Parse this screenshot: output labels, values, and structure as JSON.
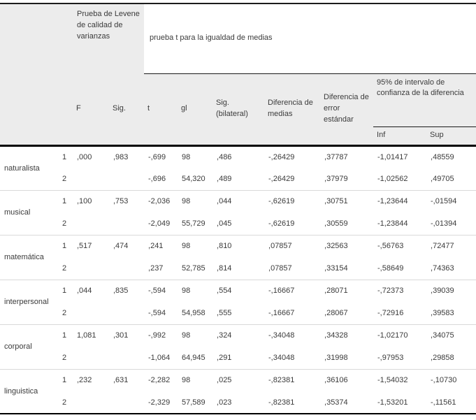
{
  "table": {
    "header": {
      "levene_title": "Prueba de Levene de calidad de varianzas",
      "ttest_title": "prueba t para la igualdad de medias",
      "ci_title": "95% de intervalo de confianza de la diferencia",
      "col_f": "F",
      "col_sig": "Sig.",
      "col_t": "t",
      "col_gl": "gl",
      "col_sig_bilateral": "Sig. (bilateral)",
      "col_dif_medias": "Diferencia de medias",
      "col_dif_error": "Diferencia de error estándar",
      "col_inf": "Inf",
      "col_sup": "Sup"
    },
    "rows": [
      {
        "label": "naturalista",
        "lines": [
          {
            "num": "1",
            "f": ",000",
            "sig": ",983",
            "t": "-,699",
            "gl": "98",
            "sig_bilateral": ",486",
            "dif_medias": "-,26429",
            "dif_error": ",37787",
            "inf": "-1,01417",
            "sup": ",48559"
          },
          {
            "num": "2",
            "f": "",
            "sig": "",
            "t": "-,696",
            "gl": "54,320",
            "sig_bilateral": ",489",
            "dif_medias": "-,26429",
            "dif_error": ",37979",
            "inf": "-1,02562",
            "sup": ",49705"
          }
        ]
      },
      {
        "label": "musical",
        "lines": [
          {
            "num": "1",
            "f": ",100",
            "sig": ",753",
            "t": "-2,036",
            "gl": "98",
            "sig_bilateral": ",044",
            "dif_medias": "-,62619",
            "dif_error": ",30751",
            "inf": "-1,23644",
            "sup": "-,01594"
          },
          {
            "num": "2",
            "f": "",
            "sig": "",
            "t": "-2,049",
            "gl": "55,729",
            "sig_bilateral": ",045",
            "dif_medias": "-,62619",
            "dif_error": ",30559",
            "inf": "-1,23844",
            "sup": "-,01394"
          }
        ]
      },
      {
        "label": "matemática",
        "lines": [
          {
            "num": "1",
            "f": ",517",
            "sig": ",474",
            "t": ",241",
            "gl": "98",
            "sig_bilateral": ",810",
            "dif_medias": ",07857",
            "dif_error": ",32563",
            "inf": "-,56763",
            "sup": ",72477"
          },
          {
            "num": "2",
            "f": "",
            "sig": "",
            "t": ",237",
            "gl": "52,785",
            "sig_bilateral": ",814",
            "dif_medias": ",07857",
            "dif_error": ",33154",
            "inf": "-,58649",
            "sup": ",74363"
          }
        ]
      },
      {
        "label": "interpersonal",
        "lines": [
          {
            "num": "1",
            "f": ",044",
            "sig": ",835",
            "t": "-,594",
            "gl": "98",
            "sig_bilateral": ",554",
            "dif_medias": "-,16667",
            "dif_error": ",28071",
            "inf": "-,72373",
            "sup": ",39039"
          },
          {
            "num": "2",
            "f": "",
            "sig": "",
            "t": "-,594",
            "gl": "54,958",
            "sig_bilateral": ",555",
            "dif_medias": "-,16667",
            "dif_error": ",28067",
            "inf": "-,72916",
            "sup": ",39583"
          }
        ]
      },
      {
        "label": "corporal",
        "lines": [
          {
            "num": "1",
            "f": "1,081",
            "sig": ",301",
            "t": "-,992",
            "gl": "98",
            "sig_bilateral": ",324",
            "dif_medias": "-,34048",
            "dif_error": ",34328",
            "inf": "-1,02170",
            "sup": ",34075"
          },
          {
            "num": "2",
            "f": "",
            "sig": "",
            "t": "-1,064",
            "gl": "64,945",
            "sig_bilateral": ",291",
            "dif_medias": "-,34048",
            "dif_error": ",31998",
            "inf": "-,97953",
            "sup": ",29858"
          }
        ]
      },
      {
        "label": "linguistica",
        "lines": [
          {
            "num": "1",
            "f": ",232",
            "sig": ",631",
            "t": "-2,282",
            "gl": "98",
            "sig_bilateral": ",025",
            "dif_medias": "-,82381",
            "dif_error": ",36106",
            "inf": "-1,54032",
            "sup": "-,10730"
          },
          {
            "num": "2",
            "f": "",
            "sig": "",
            "t": "-2,329",
            "gl": "57,589",
            "sig_bilateral": ",023",
            "dif_medias": "-,82381",
            "dif_error": ",35374",
            "inf": "-1,53201",
            "sup": "-,11561"
          }
        ]
      }
    ]
  }
}
